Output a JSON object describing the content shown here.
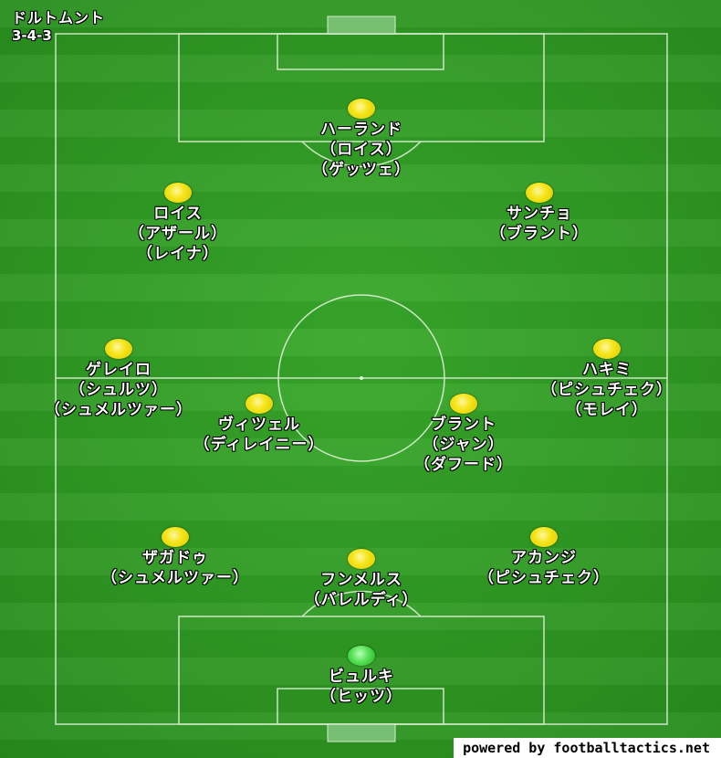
{
  "team": {
    "name": "ドルトムント",
    "formation": "3-4-3"
  },
  "colors": {
    "pitch": "#2f9a22",
    "player_dot": "#f5e51a",
    "goalkeeper_dot": "#3fd33f",
    "lines": "#e8f5e0"
  },
  "players": [
    {
      "id": "st",
      "name": "ハーランド",
      "subs": [
        "（ロイス）",
        "（ゲッツェ）"
      ],
      "gk": false
    },
    {
      "id": "lw",
      "name": "ロイス",
      "subs": [
        "（アザール）",
        "（レイナ）"
      ],
      "gk": false
    },
    {
      "id": "rw",
      "name": "サンチョ",
      "subs": [
        "（ブラント）"
      ],
      "gk": false
    },
    {
      "id": "lm",
      "name": "ゲレイロ",
      "subs": [
        "（シュルツ）",
        "（シュメルツァー）"
      ],
      "gk": false
    },
    {
      "id": "rm",
      "name": "ハキミ",
      "subs": [
        "（ピシュチェク）",
        "（モレイ）"
      ],
      "gk": false
    },
    {
      "id": "lcm",
      "name": "ヴィツェル",
      "subs": [
        "（ディレイニー）"
      ],
      "gk": false
    },
    {
      "id": "rcm",
      "name": "ブラント",
      "subs": [
        "（ジャン）",
        "（ダフード）"
      ],
      "gk": false
    },
    {
      "id": "lcb",
      "name": "ザガドゥ",
      "subs": [
        "（シュメルツァー）"
      ],
      "gk": false
    },
    {
      "id": "cb",
      "name": "フンメルス",
      "subs": [
        "（バレルディ）"
      ],
      "gk": false
    },
    {
      "id": "rcb",
      "name": "アカンジ",
      "subs": [
        "（ピシュチェク）"
      ],
      "gk": false
    },
    {
      "id": "gk",
      "name": "ビュルキ",
      "subs": [
        "（ヒッツ）"
      ],
      "gk": true
    }
  ],
  "credit": "powered by footballtactics.net"
}
